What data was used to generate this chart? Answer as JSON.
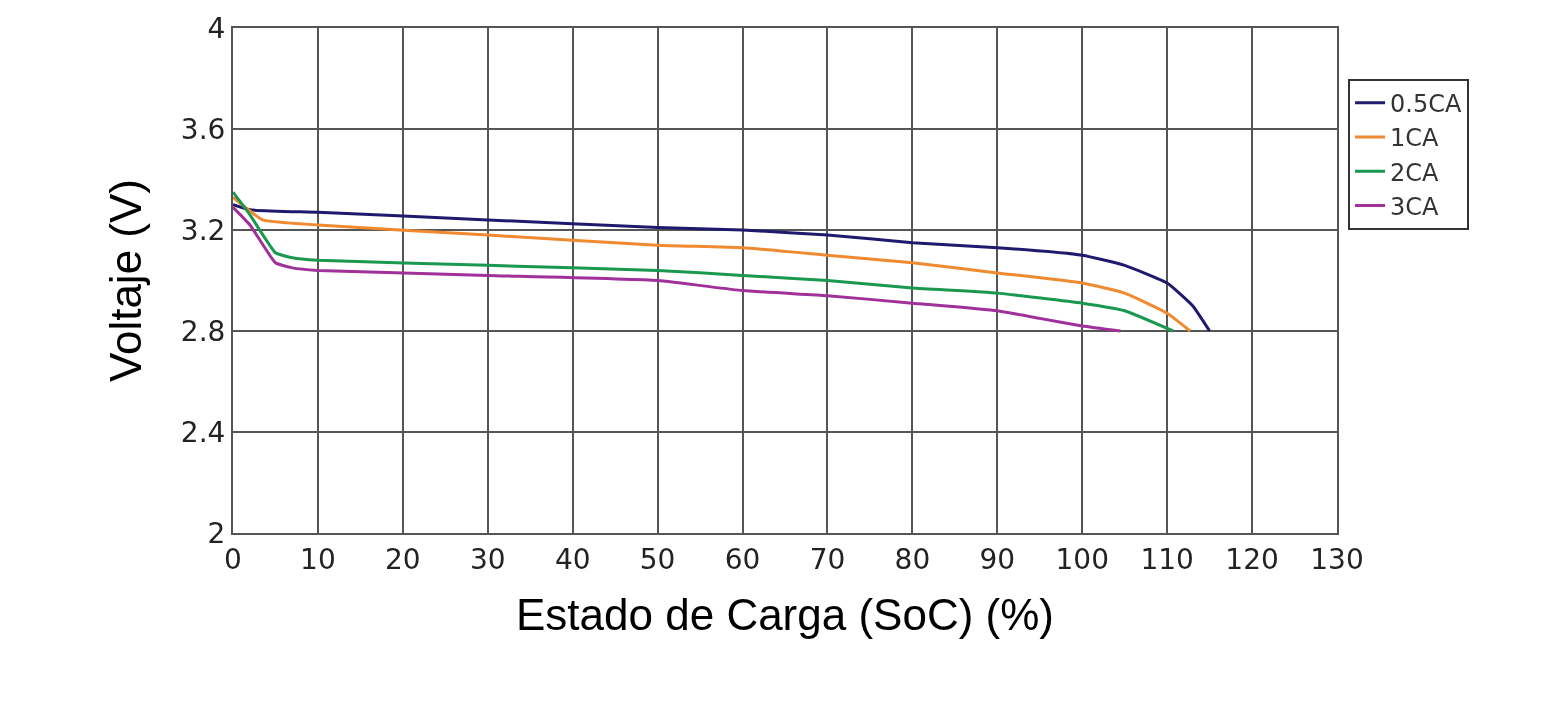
{
  "chart_data": {
    "type": "line",
    "xlabel": "Estado de Carga (SoC) (%)",
    "ylabel": "Voltaje (V)",
    "xlim": [
      0,
      130
    ],
    "xticks": [
      0,
      10,
      20,
      30,
      40,
      50,
      60,
      70,
      80,
      90,
      100,
      110,
      120,
      130
    ],
    "ylim": [
      2,
      4
    ],
    "yticks": [
      2,
      2.4,
      2.8,
      3.2,
      3.6,
      4
    ],
    "grid": true,
    "legend": "right",
    "marker": "none",
    "line_style": "solid",
    "series": [
      {
        "name": "0.5CA",
        "color": "#1f1a6e",
        "x": [
          0,
          2,
          10,
          30,
          50,
          60,
          70,
          80,
          90,
          100,
          105,
          110,
          113,
          115
        ],
        "values": [
          3.3,
          3.28,
          3.27,
          3.24,
          3.21,
          3.2,
          3.18,
          3.15,
          3.13,
          3.1,
          3.06,
          2.99,
          2.9,
          2.8
        ]
      },
      {
        "name": "1CA",
        "color": "#f08a30",
        "x": [
          0,
          3.5,
          10,
          30,
          50,
          60,
          70,
          80,
          90,
          100,
          105,
          110,
          112.7
        ],
        "values": [
          3.33,
          3.24,
          3.22,
          3.18,
          3.14,
          3.13,
          3.1,
          3.07,
          3.03,
          2.99,
          2.95,
          2.87,
          2.8
        ]
      },
      {
        "name": "2CA",
        "color": "#1a9850",
        "x": [
          0,
          2,
          5,
          7,
          10,
          30,
          50,
          60,
          70,
          80,
          90,
          100,
          105,
          110.7
        ],
        "values": [
          3.35,
          3.26,
          3.11,
          3.09,
          3.08,
          3.06,
          3.04,
          3.02,
          3.0,
          2.97,
          2.95,
          2.91,
          2.88,
          2.8
        ]
      },
      {
        "name": "3CA",
        "color": "#a0309a",
        "x": [
          0,
          2,
          5,
          7,
          10,
          30,
          50,
          60,
          70,
          80,
          90,
          95,
          100,
          104.5
        ],
        "values": [
          3.29,
          3.22,
          3.07,
          3.05,
          3.04,
          3.02,
          3.0,
          2.96,
          2.94,
          2.91,
          2.88,
          2.85,
          2.82,
          2.8
        ]
      }
    ]
  }
}
